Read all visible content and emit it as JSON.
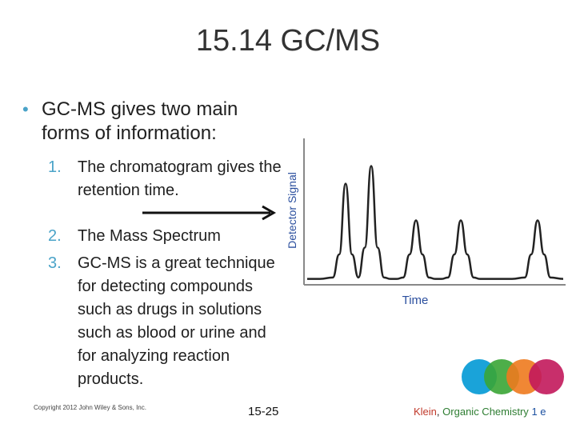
{
  "slide": {
    "title": "15.14 GC/MS",
    "bullet": "GC-MS gives two main forms of information:",
    "items": [
      {
        "num": "1.",
        "text": "The chromatogram gives the retention time."
      },
      {
        "num": "2.",
        "text": "The Mass Spectrum"
      },
      {
        "num": "3.",
        "text": "GC-MS is a great technique for detecting compounds such as drugs in solutions such as blood or urine and for analyzing reaction products."
      }
    ]
  },
  "chart_data": {
    "type": "line",
    "xlabel": "Time",
    "ylabel": "Detector Signal",
    "x": [
      0,
      2,
      4,
      5,
      6,
      7,
      8,
      9,
      10,
      11,
      12,
      13,
      14,
      15,
      16,
      17,
      18,
      19,
      20,
      21,
      22,
      23,
      24,
      25,
      26,
      27,
      28,
      29,
      30,
      32,
      34,
      35,
      36,
      37,
      38,
      40
    ],
    "series": [
      {
        "values": [
          2,
          2,
          3,
          20,
          72,
          20,
          3,
          25,
          85,
          25,
          3,
          2,
          2,
          3,
          20,
          45,
          20,
          3,
          2,
          2,
          3,
          20,
          45,
          20,
          3,
          2,
          2,
          2,
          2,
          2,
          3,
          20,
          45,
          20,
          3,
          2
        ]
      }
    ],
    "ylim": [
      0,
      100
    ],
    "colors": {
      "line": "#222222",
      "axis": "#888888",
      "label": "#2b4f9e"
    }
  },
  "footer": {
    "copyright": "Copyright 2012 John Wiley & Sons, Inc.",
    "page": "15-25",
    "author": "Klein",
    "separator": ",",
    "book": "Organic Chemistry",
    "edition": "1 e"
  },
  "logo": {
    "colors": [
      "#1aa3d9",
      "#3aa535",
      "#ee7a1e",
      "#c2185b"
    ]
  },
  "colors": {
    "accent": "#4aa3c8",
    "title": "#333333"
  }
}
